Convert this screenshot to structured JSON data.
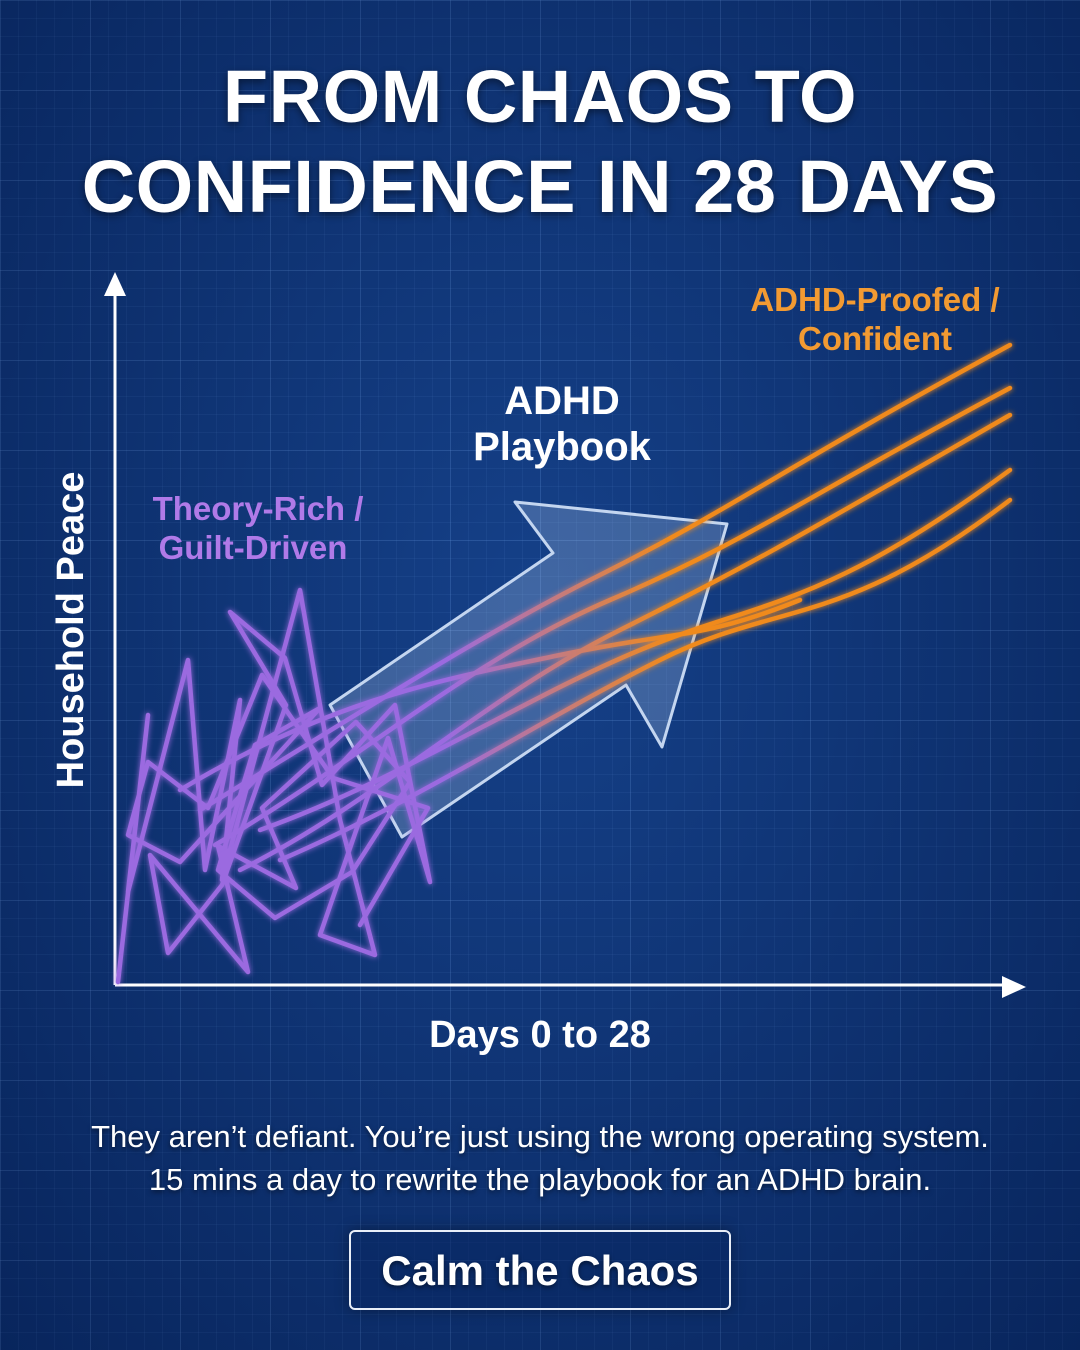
{
  "headline": {
    "line1": "FROM CHAOS TO",
    "line2": "CONFIDENCE IN 28 DAYS"
  },
  "diagram": {
    "y_axis_label": "Household Peace",
    "x_axis_label": "Days 0 to 28",
    "chaos_label": [
      "Theory-Rich /",
      "Guilt-Driven"
    ],
    "arrow_label": [
      "ADHD",
      "Playbook"
    ],
    "confident_label": [
      "ADHD-Proofed /",
      "Confident"
    ],
    "colors": {
      "chaos": "#9b6be0",
      "confident": "#f08a1c",
      "arrow": "#a8bfe0",
      "axis": "#ffffff"
    }
  },
  "subtext": {
    "line1": "They aren’t defiant. You’re just using the wrong operating system.",
    "line2": "15 mins a day to rewrite the playbook for an ADHD brain."
  },
  "cta": {
    "label": "Calm the Chaos"
  }
}
